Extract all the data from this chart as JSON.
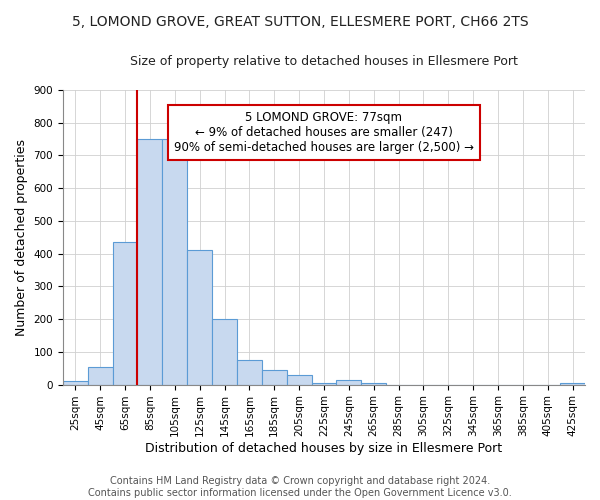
{
  "title": "5, LOMOND GROVE, GREAT SUTTON, ELLESMERE PORT, CH66 2TS",
  "subtitle": "Size of property relative to detached houses in Ellesmere Port",
  "xlabel": "Distribution of detached houses by size in Ellesmere Port",
  "ylabel": "Number of detached properties",
  "annotation_line1": "5 LOMOND GROVE: 77sqm",
  "annotation_line2": "← 9% of detached houses are smaller (247)",
  "annotation_line3": "90% of semi-detached houses are larger (2,500) →",
  "footer_line1": "Contains HM Land Registry data © Crown copyright and database right 2024.",
  "footer_line2": "Contains public sector information licensed under the Open Government Licence v3.0.",
  "categories": [
    "25sqm",
    "45sqm",
    "65sqm",
    "85sqm",
    "105sqm",
    "125sqm",
    "145sqm",
    "165sqm",
    "185sqm",
    "205sqm",
    "225sqm",
    "245sqm",
    "265sqm",
    "285sqm",
    "305sqm",
    "325sqm",
    "345sqm",
    "365sqm",
    "385sqm",
    "405sqm",
    "425sqm"
  ],
  "values": [
    10,
    55,
    435,
    750,
    750,
    410,
    200,
    75,
    45,
    30,
    5,
    15,
    5,
    0,
    0,
    0,
    0,
    0,
    0,
    0,
    5
  ],
  "bar_color": "#c8d9ef",
  "bar_edge_color": "#5b9bd5",
  "annotation_box_color": "#ffffff",
  "annotation_box_edge_color": "#cc0000",
  "property_line_color": "#cc0000",
  "property_line_index": 2.5,
  "ylim": [
    0,
    900
  ],
  "yticks": [
    0,
    100,
    200,
    300,
    400,
    500,
    600,
    700,
    800,
    900
  ],
  "grid_color": "#d0d0d0",
  "background_color": "#ffffff",
  "title_fontsize": 10,
  "subtitle_fontsize": 9,
  "axis_label_fontsize": 9,
  "tick_fontsize": 7.5,
  "footer_fontsize": 7,
  "annotation_fontsize": 8.5
}
